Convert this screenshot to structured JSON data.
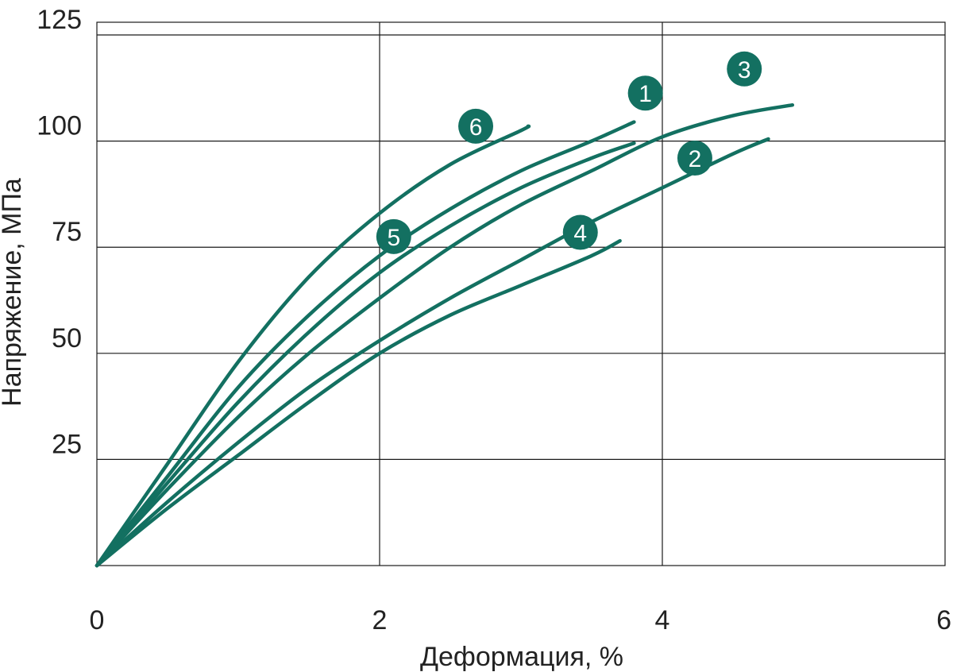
{
  "colors": {
    "series": "#137061",
    "grid": "#1a1a1a",
    "text": "#222222"
  },
  "chart_data": {
    "type": "line",
    "title": "",
    "xlabel": "Деформация, %",
    "ylabel": "Напряжение, МПа",
    "xlim": [
      0,
      6
    ],
    "ylim": [
      0,
      128
    ],
    "xticks": [
      0,
      2,
      4,
      6
    ],
    "yticks": [
      25,
      50,
      75,
      100,
      125
    ],
    "grid": true,
    "legend": "inline-markers",
    "series": [
      {
        "label": "1",
        "marker_at": [
          3.88,
          111.3
        ],
        "points": [
          [
            0,
            0
          ],
          [
            0.5,
            21
          ],
          [
            1.0,
            42
          ],
          [
            1.5,
            59
          ],
          [
            2.0,
            73
          ],
          [
            2.5,
            84
          ],
          [
            3.0,
            93
          ],
          [
            3.5,
            100
          ],
          [
            3.8,
            104.5
          ]
        ]
      },
      {
        "label": "2",
        "marker_at": [
          4.23,
          96
        ],
        "points": [
          [
            0,
            0
          ],
          [
            0.5,
            15
          ],
          [
            1.0,
            29
          ],
          [
            1.5,
            42
          ],
          [
            2.0,
            53
          ],
          [
            2.5,
            63
          ],
          [
            3.0,
            72
          ],
          [
            3.5,
            81
          ],
          [
            4.0,
            89
          ],
          [
            4.5,
            97
          ],
          [
            4.75,
            100.5
          ]
        ]
      },
      {
        "label": "3",
        "marker_at": [
          4.58,
          117
        ],
        "points": [
          [
            0,
            0
          ],
          [
            0.5,
            18
          ],
          [
            1.0,
            35
          ],
          [
            1.5,
            50
          ],
          [
            2.0,
            63
          ],
          [
            2.5,
            75
          ],
          [
            3.0,
            85
          ],
          [
            3.5,
            93
          ],
          [
            4.0,
            101
          ],
          [
            4.5,
            106
          ],
          [
            4.92,
            108.5
          ]
        ]
      },
      {
        "label": "4",
        "marker_at": [
          3.42,
          78.5
        ],
        "points": [
          [
            0,
            0
          ],
          [
            0.5,
            13.5
          ],
          [
            1.0,
            26
          ],
          [
            1.5,
            38.5
          ],
          [
            2.0,
            50
          ],
          [
            2.5,
            59
          ],
          [
            3.0,
            66
          ],
          [
            3.5,
            73
          ],
          [
            3.7,
            76.5
          ]
        ]
      },
      {
        "label": "5",
        "marker_at": [
          2.1,
          77.5
        ],
        "points": [
          [
            0,
            0
          ],
          [
            0.5,
            19.5
          ],
          [
            1.0,
            38.5
          ],
          [
            1.5,
            55
          ],
          [
            2.0,
            69
          ],
          [
            2.5,
            80
          ],
          [
            3.0,
            89
          ],
          [
            3.5,
            96
          ],
          [
            3.8,
            99.5
          ]
        ]
      },
      {
        "label": "6",
        "marker_at": [
          2.68,
          103.5
        ],
        "points": [
          [
            0,
            0
          ],
          [
            0.5,
            24
          ],
          [
            1.0,
            48
          ],
          [
            1.5,
            68
          ],
          [
            2.0,
            83
          ],
          [
            2.5,
            94.5
          ],
          [
            3.0,
            102.5
          ],
          [
            3.05,
            103.5
          ]
        ]
      }
    ]
  }
}
